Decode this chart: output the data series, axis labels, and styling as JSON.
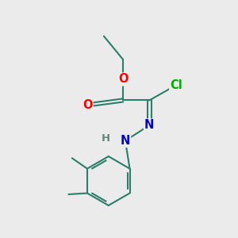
{
  "bg_color": "#ebebeb",
  "bond_color": "#2d7d6b",
  "bond_width": 1.5,
  "atom_colors": {
    "O": "#ff0000",
    "N": "#0000cc",
    "Cl": "#00aa00",
    "H": "#5a8a7a",
    "C": "#2d7d6b"
  },
  "font_size_atom": 10.5
}
